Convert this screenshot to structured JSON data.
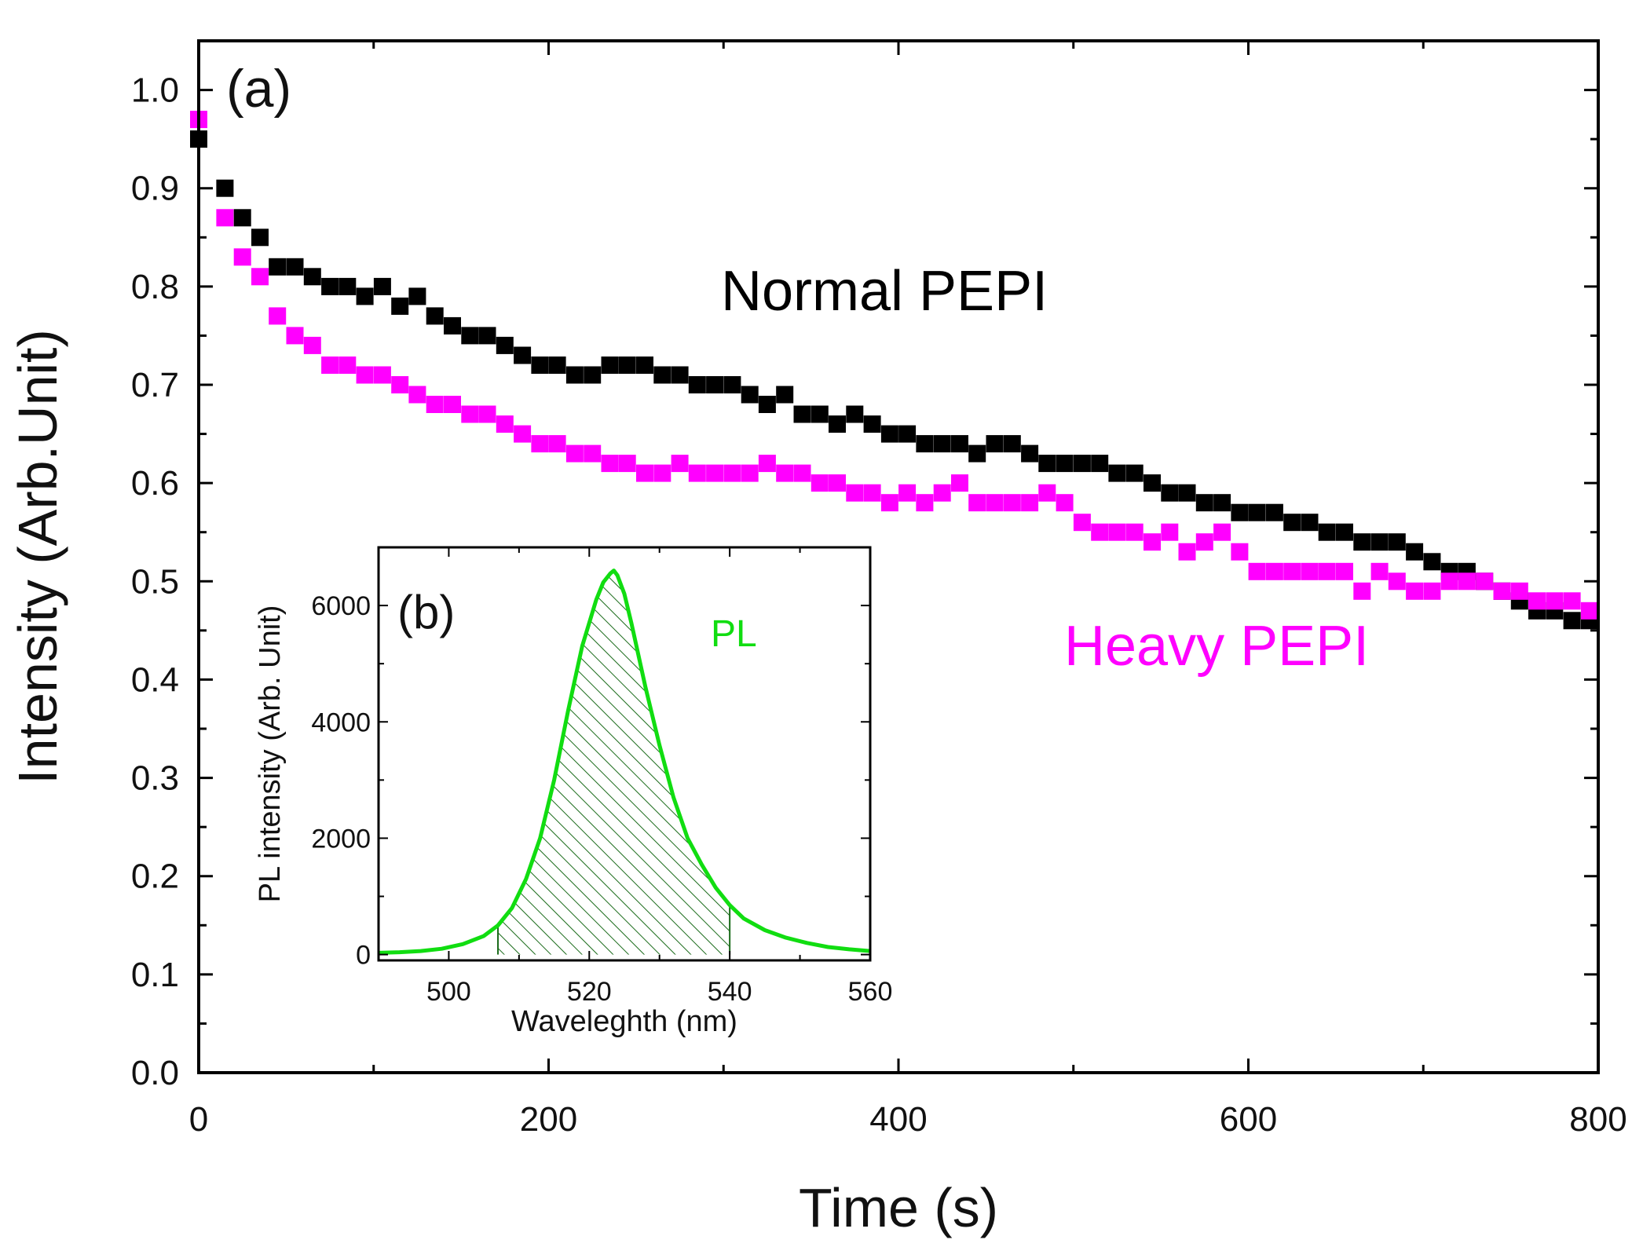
{
  "chart_data": [
    {
      "id": "a",
      "type": "scatter",
      "panel_label": "(a)",
      "title": "",
      "xlabel": "Time (s)",
      "ylabel": "Intensity (Arb.Unit)",
      "xlim": [
        0,
        800
      ],
      "ylim": [
        0.0,
        1.05
      ],
      "xticks": [
        0,
        200,
        400,
        600,
        800
      ],
      "xtick_labels": [
        "0",
        "200",
        "400",
        "600",
        "800"
      ],
      "yticks": [
        0.0,
        0.1,
        0.2,
        0.3,
        0.4,
        0.5,
        0.6,
        0.7,
        0.8,
        0.9,
        1.0
      ],
      "ytick_labels": [
        "0.0",
        "0.1",
        "0.2",
        "0.3",
        "0.4",
        "0.5",
        "0.6",
        "0.7",
        "0.8",
        "0.9",
        "1.0"
      ],
      "marker": "square",
      "series": [
        {
          "name": "Normal PEPI",
          "label": "Normal PEPI",
          "color": "#000000",
          "x": [
            0,
            15,
            25,
            35,
            45,
            55,
            65,
            75,
            85,
            95,
            105,
            115,
            125,
            135,
            145,
            155,
            165,
            175,
            185,
            195,
            205,
            215,
            225,
            235,
            245,
            255,
            265,
            275,
            285,
            295,
            305,
            315,
            325,
            335,
            345,
            355,
            365,
            375,
            385,
            395,
            405,
            415,
            425,
            435,
            445,
            455,
            465,
            475,
            485,
            495,
            505,
            515,
            525,
            535,
            545,
            555,
            565,
            575,
            585,
            595,
            605,
            615,
            625,
            635,
            645,
            655,
            665,
            675,
            685,
            695,
            705,
            715,
            725,
            735,
            745,
            755,
            765,
            775,
            785,
            795
          ],
          "y": [
            0.95,
            0.9,
            0.87,
            0.85,
            0.82,
            0.82,
            0.81,
            0.8,
            0.8,
            0.79,
            0.8,
            0.78,
            0.79,
            0.77,
            0.76,
            0.75,
            0.75,
            0.74,
            0.73,
            0.72,
            0.72,
            0.71,
            0.71,
            0.72,
            0.72,
            0.72,
            0.71,
            0.71,
            0.7,
            0.7,
            0.7,
            0.69,
            0.68,
            0.69,
            0.67,
            0.67,
            0.66,
            0.67,
            0.66,
            0.65,
            0.65,
            0.64,
            0.64,
            0.64,
            0.63,
            0.64,
            0.64,
            0.63,
            0.62,
            0.62,
            0.62,
            0.62,
            0.61,
            0.61,
            0.6,
            0.59,
            0.59,
            0.58,
            0.58,
            0.57,
            0.57,
            0.57,
            0.56,
            0.56,
            0.55,
            0.55,
            0.54,
            0.54,
            0.54,
            0.53,
            0.52,
            0.51,
            0.51,
            0.5,
            0.49,
            0.48,
            0.47,
            0.47,
            0.46,
            0.46
          ]
        },
        {
          "name": "Heavy PEPI",
          "label": "Heavy PEPI",
          "color": "#ff00ff",
          "x": [
            0,
            15,
            25,
            35,
            45,
            55,
            65,
            75,
            85,
            95,
            105,
            115,
            125,
            135,
            145,
            155,
            165,
            175,
            185,
            195,
            205,
            215,
            225,
            235,
            245,
            255,
            265,
            275,
            285,
            295,
            305,
            315,
            325,
            335,
            345,
            355,
            365,
            375,
            385,
            395,
            405,
            415,
            425,
            435,
            445,
            455,
            465,
            475,
            485,
            495,
            505,
            515,
            525,
            535,
            545,
            555,
            565,
            575,
            585,
            595,
            605,
            615,
            625,
            635,
            645,
            655,
            665,
            675,
            685,
            695,
            705,
            715,
            725,
            735,
            745,
            755,
            765,
            775,
            785,
            795
          ],
          "y": [
            0.97,
            0.87,
            0.83,
            0.81,
            0.77,
            0.75,
            0.74,
            0.72,
            0.72,
            0.71,
            0.71,
            0.7,
            0.69,
            0.68,
            0.68,
            0.67,
            0.67,
            0.66,
            0.65,
            0.64,
            0.64,
            0.63,
            0.63,
            0.62,
            0.62,
            0.61,
            0.61,
            0.62,
            0.61,
            0.61,
            0.61,
            0.61,
            0.62,
            0.61,
            0.61,
            0.6,
            0.6,
            0.59,
            0.59,
            0.58,
            0.59,
            0.58,
            0.59,
            0.6,
            0.58,
            0.58,
            0.58,
            0.58,
            0.59,
            0.58,
            0.56,
            0.55,
            0.55,
            0.55,
            0.54,
            0.55,
            0.53,
            0.54,
            0.55,
            0.53,
            0.51,
            0.51,
            0.51,
            0.51,
            0.51,
            0.51,
            0.49,
            0.51,
            0.5,
            0.49,
            0.49,
            0.5,
            0.5,
            0.5,
            0.49,
            0.49,
            0.48,
            0.48,
            0.48,
            0.47
          ]
        }
      ]
    },
    {
      "id": "b",
      "type": "line",
      "panel_label": "(b)",
      "title": "",
      "xlabel": "Waveleghth (nm)",
      "ylabel": "PL intensity (Arb. Unit)",
      "ylabel_italic_part": "Arb. Unit",
      "xlim": [
        490,
        560
      ],
      "ylim": [
        -100,
        7000
      ],
      "xticks": [
        500,
        520,
        540,
        560
      ],
      "xtick_labels": [
        "500",
        "520",
        "540",
        "560"
      ],
      "yticks": [
        0,
        2000,
        4000,
        6000
      ],
      "ytick_labels": [
        "0",
        "2000",
        "4000",
        "6000"
      ],
      "shaded_range": [
        507,
        540
      ],
      "series": [
        {
          "name": "PL",
          "label": "PL",
          "color": "#11dd11",
          "x": [
            490,
            493,
            496,
            499,
            502,
            505,
            507,
            509,
            511,
            513,
            515,
            517,
            519,
            521,
            522,
            523,
            523.5,
            524,
            525,
            526,
            528,
            530,
            532,
            534,
            536,
            538,
            540,
            542,
            545,
            548,
            551,
            554,
            557,
            560
          ],
          "y": [
            30,
            40,
            60,
            100,
            180,
            320,
            500,
            800,
            1300,
            2000,
            3000,
            4200,
            5300,
            6100,
            6400,
            6550,
            6600,
            6520,
            6200,
            5700,
            4600,
            3600,
            2700,
            2000,
            1550,
            1150,
            850,
            620,
            420,
            290,
            200,
            130,
            90,
            60
          ]
        }
      ]
    }
  ]
}
